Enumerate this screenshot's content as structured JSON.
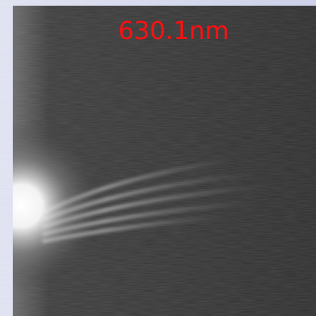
{
  "label": "630.1nm"
}
